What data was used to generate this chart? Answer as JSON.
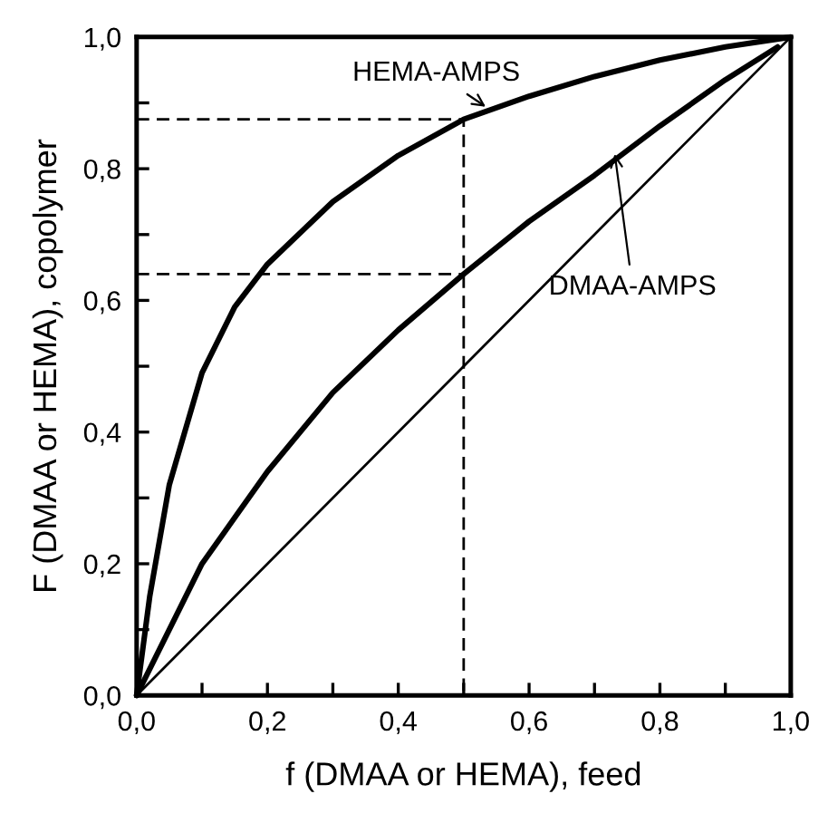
{
  "chart_data": {
    "type": "line",
    "xlabel": "f (DMAA or HEMA), feed",
    "ylabel": "F (DMAA or HEMA), copolymer",
    "series": [
      {
        "x": [
          0,
          0.02,
          0.05,
          0.1,
          0.15,
          0.2,
          0.3,
          0.4,
          0.5,
          0.6,
          0.7,
          0.8,
          0.9,
          1.0
        ],
        "values": [
          0,
          0.15,
          0.32,
          0.49,
          0.59,
          0.655,
          0.75,
          0.82,
          0.875,
          0.91,
          0.94,
          0.965,
          0.985,
          1.0
        ],
        "color": "#000000",
        "line_style": "solid"
      },
      {
        "x": [
          0,
          0.1,
          0.2,
          0.3,
          0.4,
          0.5,
          0.6,
          0.7,
          0.8,
          0.9,
          0.98
        ],
        "values": [
          0,
          0.2,
          0.34,
          0.46,
          0.555,
          0.64,
          0.72,
          0.79,
          0.865,
          0.935,
          0.985
        ],
        "color": "#000000",
        "line_style": "solid"
      },
      {
        "x": [
          0,
          1.0
        ],
        "values": [
          0,
          1.0
        ],
        "color": "#000000",
        "line_style": "solid"
      },
      {
        "x": [
          0,
          0.5,
          0.5
        ],
        "values": [
          0.875,
          0.875,
          0
        ],
        "color": "#000000",
        "line_style": "dashed"
      },
      {
        "x": [
          0,
          0.5
        ],
        "values": [
          0.64,
          0.64
        ],
        "color": "#000000",
        "line_style": "dashed"
      }
    ],
    "annotations": [
      {
        "text": "HEMA-AMPS",
        "x": 0.54,
        "y": 0.89
      },
      {
        "text": "DMAA-AMPS",
        "x": 0.73,
        "y": 0.83
      }
    ],
    "xlim": [
      0,
      1.0
    ],
    "ylim": [
      0,
      1.0
    ],
    "xticks": [
      {
        "value": 0,
        "label": "0,0"
      },
      {
        "value": 0.1,
        "label": null
      },
      {
        "value": 0.2,
        "label": "0,2"
      },
      {
        "value": 0.3,
        "label": null
      },
      {
        "value": 0.4,
        "label": "0,4"
      },
      {
        "value": 0.5,
        "label": null
      },
      {
        "value": 0.6,
        "label": "0,6"
      },
      {
        "value": 0.7,
        "label": null
      },
      {
        "value": 0.8,
        "label": "0,8"
      },
      {
        "value": 0.9,
        "label": null
      },
      {
        "value": 1.0,
        "label": "1,0"
      }
    ],
    "yticks": [
      {
        "value": 0,
        "label": "0,0"
      },
      {
        "value": 0.1,
        "label": null
      },
      {
        "value": 0.2,
        "label": "0,2"
      },
      {
        "value": 0.3,
        "label": null
      },
      {
        "value": 0.4,
        "label": "0,4"
      },
      {
        "value": 0.5,
        "label": null
      },
      {
        "value": 0.6,
        "label": "0,6"
      },
      {
        "value": 0.7,
        "label": null
      },
      {
        "value": 0.8,
        "label": "0,8"
      },
      {
        "value": 0.9,
        "label": null
      },
      {
        "value": 1.0,
        "label": "1,0"
      }
    ],
    "grid": false,
    "legend": false,
    "marker": "none"
  }
}
